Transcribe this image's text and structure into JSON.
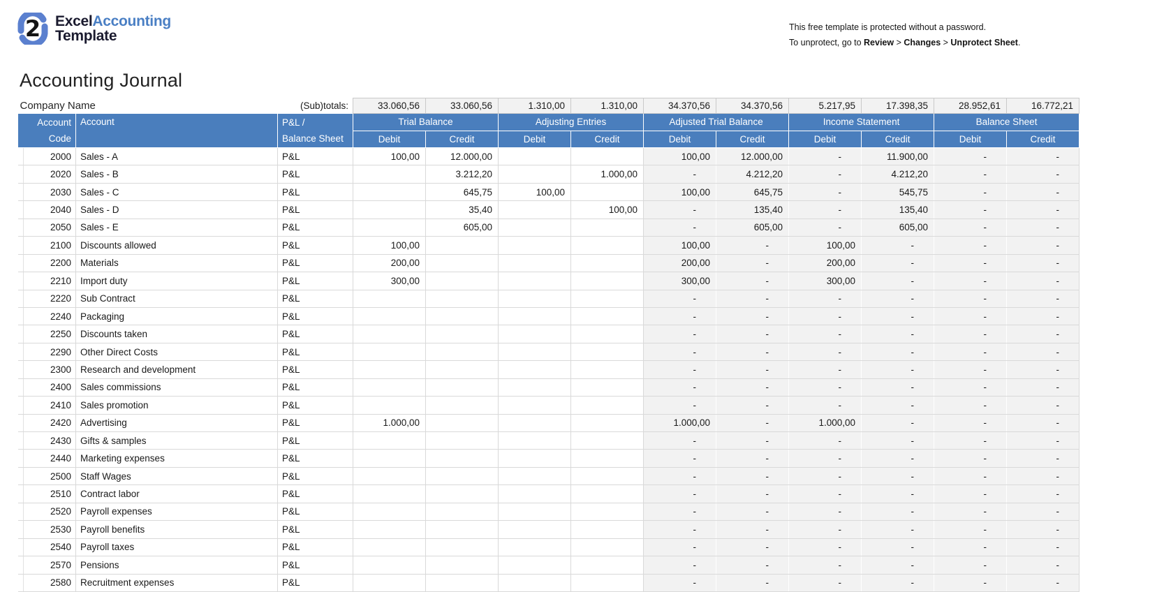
{
  "logo": {
    "brand_part1": "Excel",
    "brand_part2": "Accounting",
    "brand_part3": "Template",
    "icon": "interlocked-s-logo-icon",
    "colors": {
      "blue": "#4a7fc4",
      "dark": "#1b1b2f"
    }
  },
  "protection_note": {
    "line1": "This free template is protected without a password.",
    "line2_prefix": "To unprotect, go to ",
    "menu1": "Review",
    "sep1": " > ",
    "menu2": "Changes",
    "sep2": " > ",
    "menu3": "Unprotect Sheet",
    "line2_suffix": "."
  },
  "page_title": "Accounting Journal",
  "table": {
    "company_name": "Company Name",
    "subtotals_label": "(Sub)totals:",
    "subtotals": [
      "33.060,56",
      "33.060,56",
      "1.310,00",
      "1.310,00",
      "34.370,56",
      "34.370,56",
      "5.217,95",
      "17.398,35",
      "28.952,61",
      "16.772,21"
    ],
    "column_headers": {
      "code_line1": "Account",
      "code_line2": "Code",
      "account": "Account",
      "pnl_line1": "P&L /",
      "pnl_line2": "Balance Sheet"
    },
    "groups": [
      "Trial Balance",
      "Adjusting Entries",
      "Adjusted Trial Balance",
      "Income Statement",
      "Balance Sheet"
    ],
    "debit_label": "Debit",
    "credit_label": "Credit",
    "header_color": "#4a7ebd",
    "computed_fill_color": "#f2f2f2",
    "rows": [
      [
        "2000",
        "Sales - A",
        "P&L",
        "100,00",
        "12.000,00",
        "",
        "",
        "100,00",
        "12.000,00",
        "-",
        "11.900,00",
        "-",
        "-"
      ],
      [
        "2020",
        "Sales - B",
        "P&L",
        "",
        "3.212,20",
        "",
        "1.000,00",
        "-",
        "4.212,20",
        "-",
        "4.212,20",
        "-",
        "-"
      ],
      [
        "2030",
        "Sales - C",
        "P&L",
        "",
        "645,75",
        "100,00",
        "",
        "100,00",
        "645,75",
        "-",
        "545,75",
        "-",
        "-"
      ],
      [
        "2040",
        "Sales - D",
        "P&L",
        "",
        "35,40",
        "",
        "100,00",
        "-",
        "135,40",
        "-",
        "135,40",
        "-",
        "-"
      ],
      [
        "2050",
        "Sales - E",
        "P&L",
        "",
        "605,00",
        "",
        "",
        "-",
        "605,00",
        "-",
        "605,00",
        "-",
        "-"
      ],
      [
        "2100",
        "Discounts allowed",
        "P&L",
        "100,00",
        "",
        "",
        "",
        "100,00",
        "-",
        "100,00",
        "-",
        "-",
        "-"
      ],
      [
        "2200",
        "Materials",
        "P&L",
        "200,00",
        "",
        "",
        "",
        "200,00",
        "-",
        "200,00",
        "-",
        "-",
        "-"
      ],
      [
        "2210",
        "Import duty",
        "P&L",
        "300,00",
        "",
        "",
        "",
        "300,00",
        "-",
        "300,00",
        "-",
        "-",
        "-"
      ],
      [
        "2220",
        "Sub Contract",
        "P&L",
        "",
        "",
        "",
        "",
        "-",
        "-",
        "-",
        "-",
        "-",
        "-"
      ],
      [
        "2240",
        "Packaging",
        "P&L",
        "",
        "",
        "",
        "",
        "-",
        "-",
        "-",
        "-",
        "-",
        "-"
      ],
      [
        "2250",
        "Discounts taken",
        "P&L",
        "",
        "",
        "",
        "",
        "-",
        "-",
        "-",
        "-",
        "-",
        "-"
      ],
      [
        "2290",
        "Other Direct Costs",
        "P&L",
        "",
        "",
        "",
        "",
        "-",
        "-",
        "-",
        "-",
        "-",
        "-"
      ],
      [
        "2300",
        "Research and development",
        "P&L",
        "",
        "",
        "",
        "",
        "-",
        "-",
        "-",
        "-",
        "-",
        "-"
      ],
      [
        "2400",
        "Sales commissions",
        "P&L",
        "",
        "",
        "",
        "",
        "-",
        "-",
        "-",
        "-",
        "-",
        "-"
      ],
      [
        "2410",
        "Sales promotion",
        "P&L",
        "",
        "",
        "",
        "",
        "-",
        "-",
        "-",
        "-",
        "-",
        "-"
      ],
      [
        "2420",
        "Advertising",
        "P&L",
        "1.000,00",
        "",
        "",
        "",
        "1.000,00",
        "-",
        "1.000,00",
        "-",
        "-",
        "-"
      ],
      [
        "2430",
        "Gifts & samples",
        "P&L",
        "",
        "",
        "",
        "",
        "-",
        "-",
        "-",
        "-",
        "-",
        "-"
      ],
      [
        "2440",
        "Marketing expenses",
        "P&L",
        "",
        "",
        "",
        "",
        "-",
        "-",
        "-",
        "-",
        "-",
        "-"
      ],
      [
        "2500",
        "Staff Wages",
        "P&L",
        "",
        "",
        "",
        "",
        "-",
        "-",
        "-",
        "-",
        "-",
        "-"
      ],
      [
        "2510",
        "Contract labor",
        "P&L",
        "",
        "",
        "",
        "",
        "-",
        "-",
        "-",
        "-",
        "-",
        "-"
      ],
      [
        "2520",
        "Payroll expenses",
        "P&L",
        "",
        "",
        "",
        "",
        "-",
        "-",
        "-",
        "-",
        "-",
        "-"
      ],
      [
        "2530",
        "Payroll benefits",
        "P&L",
        "",
        "",
        "",
        "",
        "-",
        "-",
        "-",
        "-",
        "-",
        "-"
      ],
      [
        "2540",
        "Payroll taxes",
        "P&L",
        "",
        "",
        "",
        "",
        "-",
        "-",
        "-",
        "-",
        "-",
        "-"
      ],
      [
        "2570",
        "Pensions",
        "P&L",
        "",
        "",
        "",
        "",
        "-",
        "-",
        "-",
        "-",
        "-",
        "-"
      ],
      [
        "2580",
        "Recruitment expenses",
        "P&L",
        "",
        "",
        "",
        "",
        "-",
        "-",
        "-",
        "-",
        "-",
        "-"
      ]
    ]
  }
}
